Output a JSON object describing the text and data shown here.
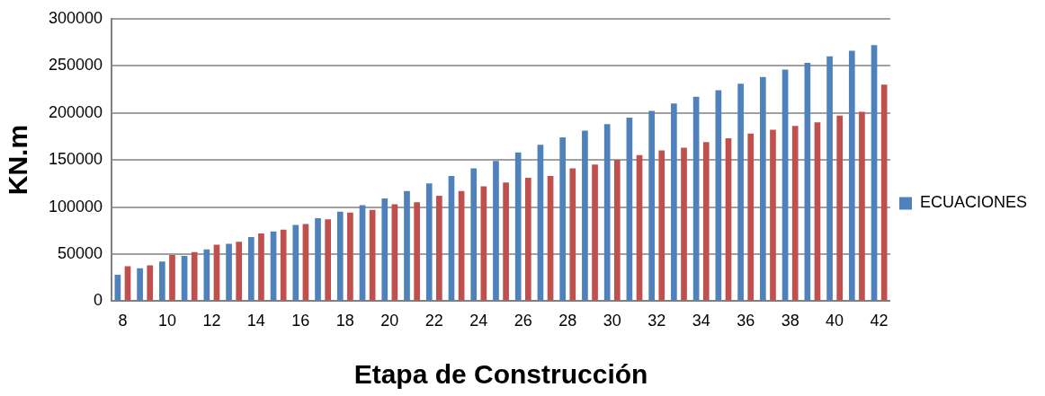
{
  "chart_data": {
    "type": "bar",
    "xlabel": "Etapa de Construcción",
    "ylabel": "KN.m",
    "categories": [
      "8",
      null,
      "10",
      null,
      "12",
      null,
      "14",
      null,
      "16",
      null,
      "18",
      null,
      "20",
      null,
      "22",
      null,
      "24",
      null,
      "26",
      null,
      "28",
      null,
      "30",
      null,
      "32",
      null,
      "34",
      null,
      "36",
      null,
      "38",
      null,
      "40",
      null,
      "42"
    ],
    "series": [
      {
        "name": "ECUACIONES",
        "color": "#4f81bd",
        "values": [
          28000,
          35000,
          42000,
          48000,
          55000,
          61000,
          68000,
          74000,
          81000,
          88000,
          95000,
          102000,
          109000,
          117000,
          125000,
          133000,
          141000,
          149000,
          158000,
          166000,
          174000,
          181000,
          188000,
          195000,
          202000,
          210000,
          217000,
          224000,
          231000,
          238000,
          246000,
          253000,
          260000,
          266000,
          272000
        ]
      },
      {
        "color": "#c0504d",
        "values": [
          37000,
          38000,
          49000,
          52000,
          60000,
          63000,
          72000,
          76000,
          82000,
          87000,
          94000,
          97000,
          103000,
          105000,
          112000,
          117000,
          122000,
          126000,
          131000,
          133000,
          141000,
          145000,
          150000,
          155000,
          160000,
          163000,
          169000,
          173000,
          178000,
          182000,
          186000,
          190000,
          197000,
          201000,
          230000
        ]
      }
    ],
    "ylim": [
      0,
      300000
    ],
    "yticks": [
      0,
      50000,
      100000,
      150000,
      200000,
      250000,
      300000
    ],
    "grid": "y",
    "legend": "right"
  }
}
